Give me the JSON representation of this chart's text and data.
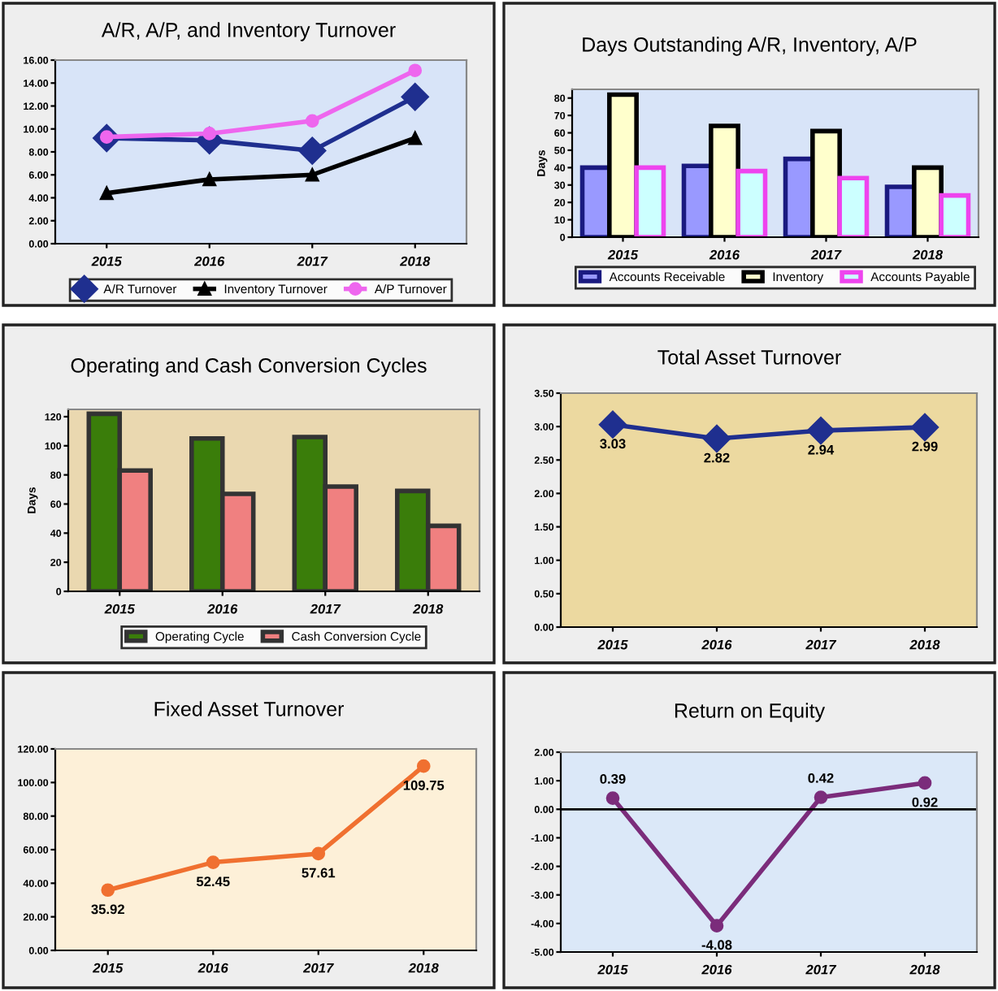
{
  "chart_data": [
    {
      "type": "line",
      "title": "A/R, A/P, and Inventory Turnover",
      "categories": [
        "2015",
        "2016",
        "2017",
        "2018"
      ],
      "series": [
        {
          "name": "A/R Turnover",
          "color": "#1f2f8f",
          "marker": "diamond",
          "values": [
            9.2,
            9.0,
            8.1,
            12.8
          ]
        },
        {
          "name": "Inventory Turnover",
          "color": "#000000",
          "marker": "triangle",
          "values": [
            4.4,
            5.6,
            6.0,
            9.2
          ]
        },
        {
          "name": "A/P Turnover",
          "color": "#ee66ee",
          "marker": "circle",
          "values": [
            9.3,
            9.6,
            10.7,
            15.1
          ]
        }
      ],
      "ylim": [
        0,
        16
      ],
      "yticks": [
        {
          "value": 0,
          "label": "0.00"
        },
        {
          "value": 2,
          "label": "2.00"
        },
        {
          "value": 4,
          "label": "4.00"
        },
        {
          "value": 6,
          "label": "6.00"
        },
        {
          "value": 8,
          "label": "8.00"
        },
        {
          "value": 10,
          "label": "10.00"
        },
        {
          "value": 12,
          "label": "12.00"
        },
        {
          "value": 14,
          "label": "14.00"
        },
        {
          "value": 16,
          "label": "16.00"
        }
      ],
      "legend": "bottom",
      "grid": false
    },
    {
      "type": "bar",
      "title": "Days Outstanding A/R, Inventory, A/P",
      "ylabel": "Days",
      "categories": [
        "2015",
        "2016",
        "2017",
        "2018"
      ],
      "series": [
        {
          "name": "Accounts Receivable",
          "color": "#9999ff",
          "values": [
            40,
            41,
            45,
            29
          ]
        },
        {
          "name": "Inventory",
          "color": "#ffffcc",
          "values": [
            82,
            64,
            61,
            40
          ]
        },
        {
          "name": "Accounts Payable",
          "color": "#ccffff",
          "values": [
            40,
            38,
            34,
            24
          ]
        }
      ],
      "ylim": [
        0,
        85
      ],
      "yticks": [
        0,
        10,
        20,
        30,
        40,
        50,
        60,
        70,
        80
      ],
      "legend": "bottom",
      "grid": false
    },
    {
      "type": "bar",
      "title": "Operating and Cash Conversion Cycles",
      "ylabel": "Days",
      "categories": [
        "2015",
        "2016",
        "2017",
        "2018"
      ],
      "series": [
        {
          "name": "Operating Cycle",
          "color": "#3a7d0a",
          "values": [
            122,
            105,
            106,
            69
          ]
        },
        {
          "name": "Cash Conversion Cycle",
          "color": "#f08080",
          "values": [
            83,
            67,
            72,
            45
          ]
        }
      ],
      "ylim": [
        0,
        125
      ],
      "yticks": [
        0,
        20,
        40,
        60,
        80,
        100,
        120
      ],
      "legend": "bottom",
      "grid": false
    },
    {
      "type": "line",
      "title": "Total Asset Turnover",
      "categories": [
        "2015",
        "2016",
        "2017",
        "2018"
      ],
      "series": [
        {
          "color": "#1f2f8f",
          "values": [
            3.03,
            2.82,
            2.94,
            2.99
          ]
        }
      ],
      "marker": "diamond",
      "data_labels": true,
      "ylim": [
        0,
        3.5
      ],
      "yticks": [
        {
          "value": 0,
          "label": "0.00"
        },
        {
          "value": 0.5,
          "label": "0.50"
        },
        {
          "value": 1,
          "label": "1.00"
        },
        {
          "value": 1.5,
          "label": "1.50"
        },
        {
          "value": 2,
          "label": "2.00"
        },
        {
          "value": 2.5,
          "label": "2.50"
        },
        {
          "value": 3,
          "label": "3.00"
        },
        {
          "value": 3.5,
          "label": "3.50"
        }
      ],
      "grid": false
    },
    {
      "type": "line",
      "title": "Fixed Asset Turnover",
      "categories": [
        "2015",
        "2016",
        "2017",
        "2018"
      ],
      "series": [
        {
          "color": "#f07030",
          "values": [
            35.92,
            52.45,
            57.61,
            109.75
          ]
        }
      ],
      "marker": "circle",
      "data_labels": true,
      "ylim": [
        0,
        120
      ],
      "yticks": [
        {
          "value": 0,
          "label": "0.00"
        },
        {
          "value": 20,
          "label": "20.00"
        },
        {
          "value": 40,
          "label": "40.00"
        },
        {
          "value": 60,
          "label": "60.00"
        },
        {
          "value": 80,
          "label": "80.00"
        },
        {
          "value": 100,
          "label": "100.00"
        },
        {
          "value": 120,
          "label": "120.00"
        }
      ],
      "grid": false
    },
    {
      "type": "line",
      "title": "Return on Equity",
      "categories": [
        "2015",
        "2016",
        "2017",
        "2018"
      ],
      "series": [
        {
          "color": "#7b2c7b",
          "values": [
            0.39,
            -4.08,
            0.42,
            0.92
          ]
        }
      ],
      "marker": "circle",
      "data_labels": true,
      "ylim": [
        -5,
        2
      ],
      "yticks": [
        {
          "value": -5,
          "label": "-5.00"
        },
        {
          "value": -4,
          "label": "-4.00"
        },
        {
          "value": -3,
          "label": "-3.00"
        },
        {
          "value": -2,
          "label": "-2.00"
        },
        {
          "value": -1,
          "label": "-1.00"
        },
        {
          "value": 0,
          "label": "0.00"
        },
        {
          "value": 1,
          "label": "1.00"
        },
        {
          "value": 2,
          "label": "2.00"
        }
      ],
      "ref_lines": [
        {
          "axis": "y",
          "value": 0,
          "color": "#000000"
        }
      ],
      "grid": false
    }
  ]
}
